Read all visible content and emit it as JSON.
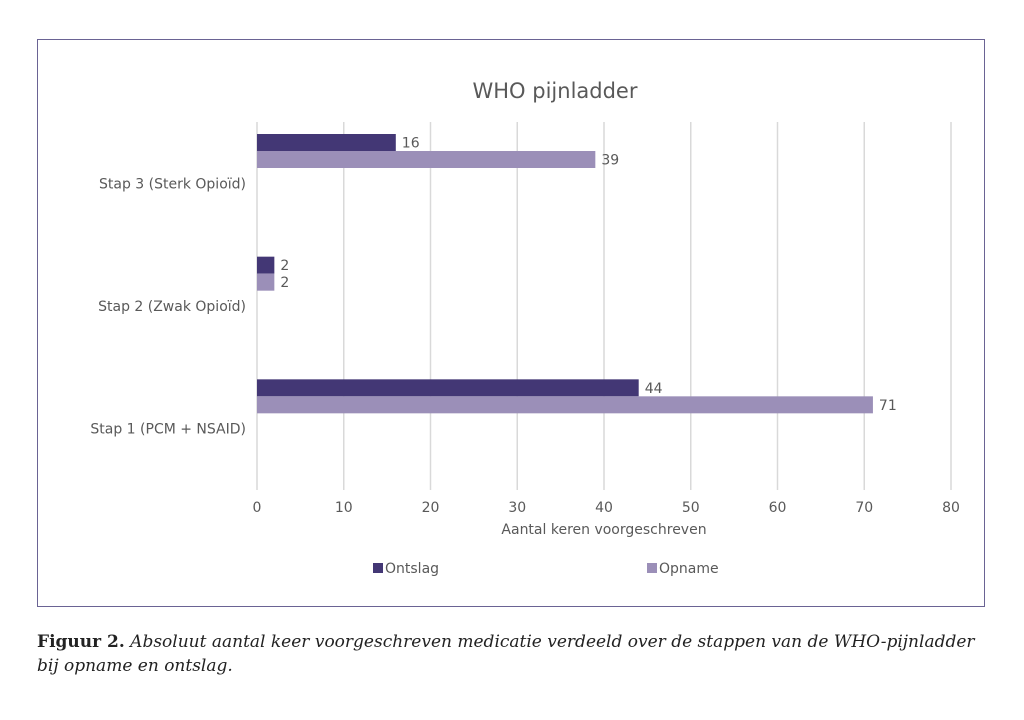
{
  "chart_data": {
    "type": "bar",
    "orientation": "horizontal",
    "title": "WHO pijnladder",
    "categories": [
      "Stap 1 (PCM + NSAID)",
      "Stap 2 (Zwak Opioïd)",
      "Stap 3 (Sterk Opioïd)"
    ],
    "series": [
      {
        "name": "Ontslag",
        "values": [
          44,
          2,
          16
        ],
        "color": "#433775"
      },
      {
        "name": "Opname",
        "values": [
          71,
          2,
          39
        ],
        "color": "#9b8fb8"
      }
    ],
    "xlabel": "Aantal keren voorgeschreven",
    "ylabel": "",
    "xlim": [
      0,
      80
    ],
    "xticks": [
      0,
      10,
      20,
      30,
      40,
      50,
      60,
      70,
      80
    ],
    "grid": true,
    "legend": "bottom",
    "data_labels": true
  },
  "caption": {
    "label": "Figuur 2.",
    "text": " Absoluut aantal keer voorgeschreven medicatie verdeeld over de stappen van de WHO-pijnladder bij opname en ontslag."
  }
}
